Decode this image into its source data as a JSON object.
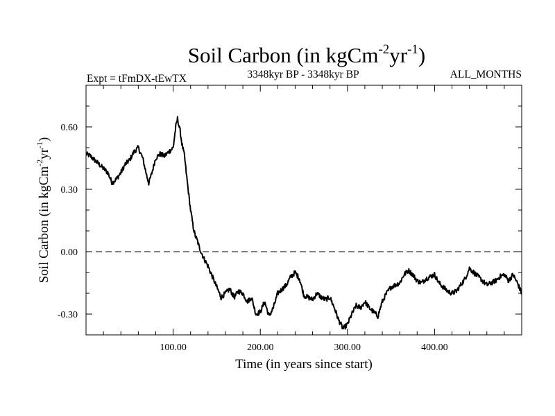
{
  "chart_data": {
    "type": "line",
    "title": {
      "main": "Soil Carbon (in kgCm",
      "sup1": "-2",
      "mid": "yr",
      "sup2": "-1",
      "end": ")"
    },
    "subtitle_left": "Expt = tFmDX-tEwTX",
    "subtitle_center": "3348kyr BP - 3348kyr BP",
    "subtitle_right": "ALL_MONTHS",
    "xlabel": "Time (in years since start)",
    "ylabel": {
      "main": "Soil Carbon (in kgCm",
      "sup1": "-2",
      "mid": "yr",
      "sup2": "-1",
      "end": ")"
    },
    "xlim": [
      0,
      500
    ],
    "ylim": [
      -0.4,
      0.8
    ],
    "xticks": [
      {
        "value": 100,
        "label": "100.00"
      },
      {
        "value": 200,
        "label": "200.00"
      },
      {
        "value": 300,
        "label": "300.00"
      },
      {
        "value": 400,
        "label": "400.00"
      }
    ],
    "yticks": [
      {
        "value": 0.6,
        "label": "0.60"
      },
      {
        "value": 0.3,
        "label": "0.30"
      },
      {
        "value": 0.0,
        "label": "0.00"
      },
      {
        "value": -0.3,
        "label": "-0.30"
      }
    ],
    "x_minor_step": 20,
    "y_minor_step": 0.1,
    "reference_line": 0.0,
    "noise_amplitude": 0.012,
    "series": [
      {
        "name": "Soil Carbon",
        "color": "#000000",
        "x": [
          0,
          5,
          10,
          15,
          20,
          25,
          30,
          35,
          40,
          45,
          50,
          55,
          60,
          65,
          70,
          72,
          75,
          80,
          85,
          90,
          95,
          100,
          103,
          105,
          108,
          110,
          113,
          115,
          118,
          120,
          123,
          125,
          128,
          130,
          133,
          135,
          140,
          145,
          150,
          155,
          160,
          165,
          170,
          175,
          180,
          185,
          190,
          195,
          200,
          205,
          210,
          215,
          220,
          225,
          230,
          235,
          240,
          245,
          250,
          255,
          260,
          265,
          270,
          275,
          280,
          285,
          290,
          295,
          300,
          305,
          310,
          315,
          320,
          325,
          330,
          335,
          340,
          345,
          350,
          355,
          360,
          365,
          370,
          375,
          380,
          385,
          390,
          395,
          400,
          405,
          410,
          415,
          420,
          425,
          430,
          435,
          440,
          445,
          450,
          455,
          460,
          465,
          470,
          475,
          480,
          485,
          490,
          495,
          500
        ],
        "y": [
          0.47,
          0.46,
          0.44,
          0.42,
          0.4,
          0.38,
          0.33,
          0.35,
          0.38,
          0.42,
          0.44,
          0.48,
          0.5,
          0.45,
          0.36,
          0.33,
          0.37,
          0.45,
          0.47,
          0.46,
          0.48,
          0.5,
          0.6,
          0.64,
          0.58,
          0.52,
          0.46,
          0.38,
          0.27,
          0.2,
          0.12,
          0.08,
          0.05,
          0.02,
          -0.01,
          -0.03,
          -0.07,
          -0.12,
          -0.17,
          -0.22,
          -0.2,
          -0.18,
          -0.22,
          -0.19,
          -0.2,
          -0.24,
          -0.22,
          -0.3,
          -0.29,
          -0.24,
          -0.31,
          -0.27,
          -0.2,
          -0.18,
          -0.16,
          -0.12,
          -0.1,
          -0.13,
          -0.21,
          -0.22,
          -0.23,
          -0.2,
          -0.22,
          -0.23,
          -0.22,
          -0.27,
          -0.33,
          -0.37,
          -0.35,
          -0.3,
          -0.26,
          -0.27,
          -0.24,
          -0.27,
          -0.29,
          -0.31,
          -0.24,
          -0.2,
          -0.17,
          -0.16,
          -0.15,
          -0.11,
          -0.09,
          -0.11,
          -0.14,
          -0.15,
          -0.13,
          -0.12,
          -0.11,
          -0.15,
          -0.17,
          -0.19,
          -0.2,
          -0.19,
          -0.16,
          -0.13,
          -0.08,
          -0.1,
          -0.12,
          -0.14,
          -0.16,
          -0.15,
          -0.14,
          -0.12,
          -0.11,
          -0.14,
          -0.11,
          -0.15,
          -0.2
        ]
      }
    ]
  }
}
